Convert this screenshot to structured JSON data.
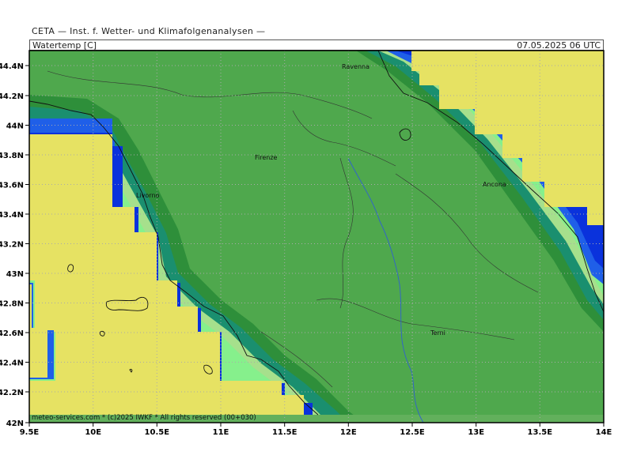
{
  "header": {
    "institute": "CETA — Inst. f. Wetter- und Klimafolgenanalysen —",
    "variable": "Watertemp [C]",
    "valid_time": "07.05.2025 06 UTC"
  },
  "map": {
    "lon_range": [
      9.5,
      14.0
    ],
    "lat_range": [
      42.0,
      44.45
    ],
    "lon_ticks": [
      "9.5E",
      "10E",
      "10.5E",
      "11E",
      "11.5E",
      "12E",
      "12.5E",
      "13E",
      "13.5E",
      "14E"
    ],
    "lat_ticks": [
      "42N",
      "42.2N",
      "42.4N",
      "42.6N",
      "42.8N",
      "43N",
      "43.2N",
      "43.4N",
      "43.6N",
      "43.8N",
      "44N",
      "44.2N",
      "44.4N"
    ],
    "grid": true,
    "cities": [
      "Ravenna",
      "Firenze",
      "Livorno",
      "Ancona",
      "Terni"
    ],
    "colors": {
      "land": "#4fa84d",
      "sea_warm": "#e6e263",
      "band_pale_green": "#a6e08c",
      "band_light_green": "#86f08c",
      "band_teal": "#1a8f6f",
      "band_blue": "#1f5fe8",
      "band_dark_blue": "#0a32dc",
      "band_dark_green": "#2e8f3a"
    }
  },
  "footer": {
    "copyright": "meteo-services.com * (c)2025 IWKF * All rights reserved (00+030)"
  }
}
